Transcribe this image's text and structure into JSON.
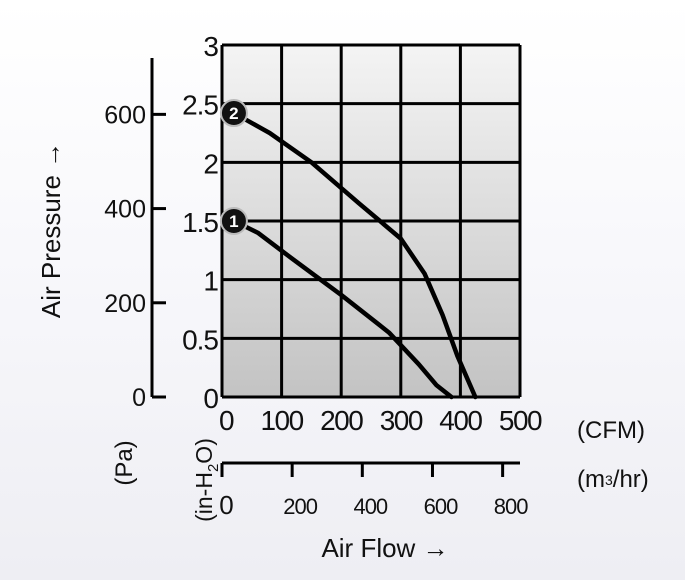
{
  "chart_data": {
    "type": "line",
    "ylabel": "Air Pressure →",
    "xlabel": "Air Flow →",
    "units": {
      "pressure_pa": "(Pa)",
      "pressure_inh2o_main": "(in-H",
      "pressure_inh2o_sub": "2",
      "pressure_inh2o_end": "O)",
      "flow_cfm": "(CFM)",
      "flow_m3hr_main": "(m",
      "flow_m3hr_sup": "3",
      "flow_m3hr_end": "/hr)"
    },
    "x_cfm_ticks": [
      "0",
      "100",
      "200",
      "300",
      "400",
      "500"
    ],
    "y_inh2o_ticks": [
      "0",
      "0.5",
      "1",
      "1.5",
      "2",
      "2.5",
      "3"
    ],
    "y_pa_ticks": [
      "0",
      "200",
      "400",
      "600"
    ],
    "x_m3hr_ticks": [
      "0",
      "200",
      "400",
      "600",
      "800"
    ],
    "xlim": [
      0,
      500
    ],
    "ylim": [
      0,
      3
    ],
    "grid": true,
    "series": [
      {
        "name": "1",
        "color": "#000000",
        "x": [
          20,
          60,
          120,
          200,
          280,
          330,
          360,
          385
        ],
        "y": [
          1.5,
          1.4,
          1.17,
          0.87,
          0.55,
          0.28,
          0.1,
          0
        ]
      },
      {
        "name": "2",
        "color": "#000000",
        "x": [
          20,
          80,
          150,
          230,
          300,
          340,
          370,
          395,
          425
        ],
        "y": [
          2.42,
          2.25,
          2.0,
          1.65,
          1.35,
          1.05,
          0.7,
          0.35,
          0
        ]
      }
    ]
  }
}
